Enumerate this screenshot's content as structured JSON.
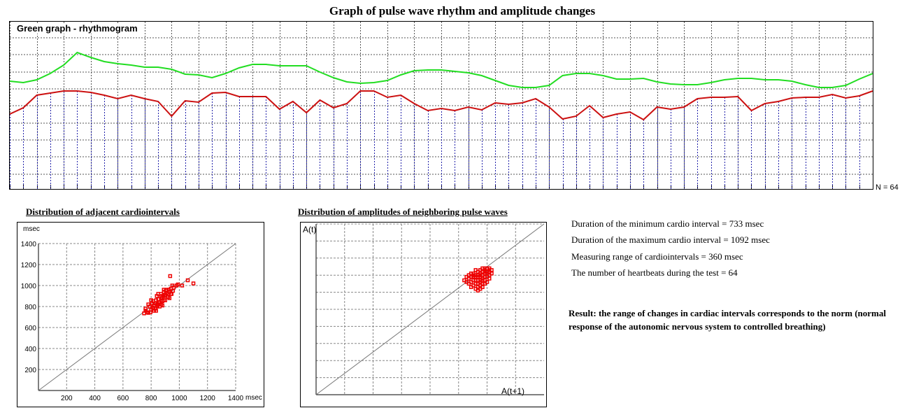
{
  "page": {
    "title": "Graph of pulse wave rhythm and amplitude changes"
  },
  "rhythmogram": {
    "label": "Green graph - rhythmogram",
    "n_label": "N = 64"
  },
  "scatter1": {
    "title": "Distribution of adjacent cardiointervals",
    "y_unit": "msec",
    "x_unit": "msec"
  },
  "scatter2": {
    "title": "Distribution of amplitudes of neighboring pulse waves",
    "y_label": "A(t)",
    "x_label": "A(t+1)"
  },
  "stats": {
    "min_interval": "Duration of the minimum cardio interval  =  733 msec",
    "max_interval": "Duration of the maximum cardio interval = 1092 msec",
    "range": "Measuring range of cardiointervals =  360 msec",
    "heartbeats": "The number of heartbeats during the test =  64"
  },
  "result": "Result: the range of changes in cardiac intervals corresponds to the norm (normal response of the autonomic nervous system to controlled breathing)",
  "colors": {
    "rhythm_line": "#22dd22",
    "amplitude_line": "#cc1111",
    "scatter_points": "#ee0000",
    "grid": "#555555",
    "tick_lines": "#2222aa"
  },
  "chart_data": [
    {
      "type": "line",
      "title": "Green graph - rhythmogram",
      "series": [
        {
          "values": [
            0.45,
            0.47,
            0.43,
            0.34,
            0.22,
            0.04,
            0.11,
            0.17,
            0.2,
            0.22,
            0.25,
            0.25,
            0.28,
            0.35,
            0.36,
            0.4,
            0.34,
            0.26,
            0.21,
            0.21,
            0.23,
            0.23,
            0.23,
            0.32,
            0.4,
            0.46,
            0.48,
            0.47,
            0.44,
            0.36,
            0.3,
            0.29,
            0.29,
            0.31,
            0.33,
            0.37,
            0.44,
            0.51,
            0.54,
            0.54,
            0.51,
            0.37,
            0.34,
            0.34,
            0.37,
            0.42,
            0.42,
            0.41,
            0.46,
            0.49,
            0.5,
            0.5,
            0.47,
            0.43,
            0.41,
            0.41,
            0.43,
            0.43,
            0.45,
            0.5,
            0.54,
            0.54,
            0.51,
            0.42,
            0.34
          ]
        },
        {
          "values": [
            1.02,
            0.93,
            0.75,
            0.72,
            0.69,
            0.69,
            0.71,
            0.75,
            0.8,
            0.75,
            0.8,
            0.84,
            1.05,
            0.83,
            0.85,
            0.72,
            0.71,
            0.77,
            0.77,
            0.77,
            0.95,
            0.84,
            1.0,
            0.82,
            0.93,
            0.87,
            0.69,
            0.69,
            0.78,
            0.75,
            0.87,
            0.97,
            0.94,
            0.97,
            0.92,
            0.96,
            0.86,
            0.88,
            0.86,
            0.8,
            0.92,
            1.09,
            1.05,
            0.9,
            1.07,
            1.02,
            0.99,
            1.1,
            0.92,
            0.95,
            0.92,
            0.8,
            0.78,
            0.78,
            0.77,
            0.97,
            0.87,
            0.84,
            0.79,
            0.78,
            0.78,
            0.74,
            0.79,
            0.76,
            0.69
          ]
        }
      ]
    },
    {
      "type": "scatter",
      "title": "Distribution of adjacent cardiointervals",
      "xlabel": "msec",
      "ylabel": "msec",
      "xlim": [
        0,
        1400
      ],
      "ylim": [
        0,
        1400
      ],
      "x_ticks": [
        200,
        400,
        600,
        800,
        1000,
        1200,
        1400
      ],
      "y_ticks": [
        200,
        400,
        600,
        800,
        1000,
        1200,
        1400
      ],
      "grid": true,
      "identity_line": true,
      "points": [
        [
          750,
          735
        ],
        [
          760,
          760
        ],
        [
          770,
          745
        ],
        [
          790,
          800
        ],
        [
          800,
          770
        ],
        [
          805,
          830
        ],
        [
          810,
          790
        ],
        [
          815,
          850
        ],
        [
          820,
          810
        ],
        [
          830,
          780
        ],
        [
          835,
          860
        ],
        [
          840,
          900
        ],
        [
          845,
          820
        ],
        [
          850,
          870
        ],
        [
          855,
          840
        ],
        [
          860,
          800
        ],
        [
          870,
          920
        ],
        [
          875,
          880
        ],
        [
          880,
          850
        ],
        [
          885,
          900
        ],
        [
          890,
          940
        ],
        [
          895,
          910
        ],
        [
          900,
          860
        ],
        [
          905,
          950
        ],
        [
          910,
          930
        ],
        [
          920,
          890
        ],
        [
          925,
          960
        ],
        [
          930,
          940
        ],
        [
          935,
          1090
        ],
        [
          940,
          970
        ],
        [
          945,
          920
        ],
        [
          950,
          1000
        ],
        [
          955,
          950
        ],
        [
          960,
          980
        ],
        [
          980,
          1000
        ],
        [
          990,
          1010
        ],
        [
          1020,
          1000
        ],
        [
          1060,
          1050
        ],
        [
          1100,
          1020
        ],
        [
          780,
          740
        ],
        [
          820,
          760
        ],
        [
          860,
          840
        ],
        [
          890,
          860
        ],
        [
          845,
          800
        ],
        [
          870,
          860
        ],
        [
          800,
          860
        ],
        [
          830,
          830
        ],
        [
          900,
          900
        ],
        [
          910,
          960
        ],
        [
          880,
          810
        ],
        [
          930,
          880
        ],
        [
          795,
          745
        ],
        [
          840,
          810
        ],
        [
          870,
          900
        ],
        [
          850,
          920
        ],
        [
          890,
          960
        ],
        [
          920,
          920
        ],
        [
          760,
          780
        ],
        [
          780,
          820
        ],
        [
          815,
          780
        ],
        [
          835,
          760
        ],
        [
          870,
          820
        ],
        [
          940,
          920
        ]
      ]
    },
    {
      "type": "scatter",
      "title": "Distribution of amplitudes of neighboring pulse waves",
      "xlabel": "A(t+1)",
      "ylabel": "A(t)",
      "xlim": [
        0,
        1
      ],
      "ylim": [
        0,
        1
      ],
      "grid": true,
      "identity_line": true,
      "points": [
        [
          0.65,
          0.67
        ],
        [
          0.66,
          0.66
        ],
        [
          0.67,
          0.68
        ],
        [
          0.68,
          0.63
        ],
        [
          0.68,
          0.66
        ],
        [
          0.69,
          0.69
        ],
        [
          0.7,
          0.67
        ],
        [
          0.7,
          0.7
        ],
        [
          0.71,
          0.65
        ],
        [
          0.71,
          0.69
        ],
        [
          0.72,
          0.67
        ],
        [
          0.72,
          0.71
        ],
        [
          0.73,
          0.68
        ],
        [
          0.73,
          0.7
        ],
        [
          0.74,
          0.72
        ],
        [
          0.74,
          0.69
        ],
        [
          0.75,
          0.71
        ],
        [
          0.75,
          0.66
        ],
        [
          0.76,
          0.73
        ],
        [
          0.76,
          0.7
        ],
        [
          0.69,
          0.64
        ],
        [
          0.7,
          0.62
        ],
        [
          0.71,
          0.61
        ],
        [
          0.72,
          0.62
        ],
        [
          0.72,
          0.64
        ],
        [
          0.73,
          0.72
        ],
        [
          0.74,
          0.67
        ],
        [
          0.75,
          0.74
        ],
        [
          0.76,
          0.68
        ],
        [
          0.69,
          0.71
        ],
        [
          0.68,
          0.69
        ],
        [
          0.67,
          0.65
        ],
        [
          0.7,
          0.73
        ],
        [
          0.71,
          0.72
        ],
        [
          0.72,
          0.73
        ],
        [
          0.73,
          0.74
        ],
        [
          0.74,
          0.74
        ],
        [
          0.75,
          0.69
        ],
        [
          0.66,
          0.69
        ],
        [
          0.7,
          0.65
        ],
        [
          0.71,
          0.67
        ],
        [
          0.72,
          0.69
        ],
        [
          0.73,
          0.65
        ],
        [
          0.74,
          0.71
        ],
        [
          0.76,
          0.72
        ],
        [
          0.77,
          0.73
        ],
        [
          0.77,
          0.71
        ],
        [
          0.69,
          0.67
        ],
        [
          0.71,
          0.7
        ],
        [
          0.72,
          0.66
        ],
        [
          0.73,
          0.63
        ],
        [
          0.75,
          0.72
        ],
        [
          0.68,
          0.71
        ],
        [
          0.7,
          0.69
        ],
        [
          0.74,
          0.65
        ],
        [
          0.76,
          0.74
        ],
        [
          0.67,
          0.7
        ],
        [
          0.72,
          0.7
        ],
        [
          0.73,
          0.67
        ],
        [
          0.71,
          0.63
        ],
        [
          0.74,
          0.73
        ],
        [
          0.76,
          0.7
        ],
        [
          0.69,
          0.7
        ]
      ]
    }
  ]
}
